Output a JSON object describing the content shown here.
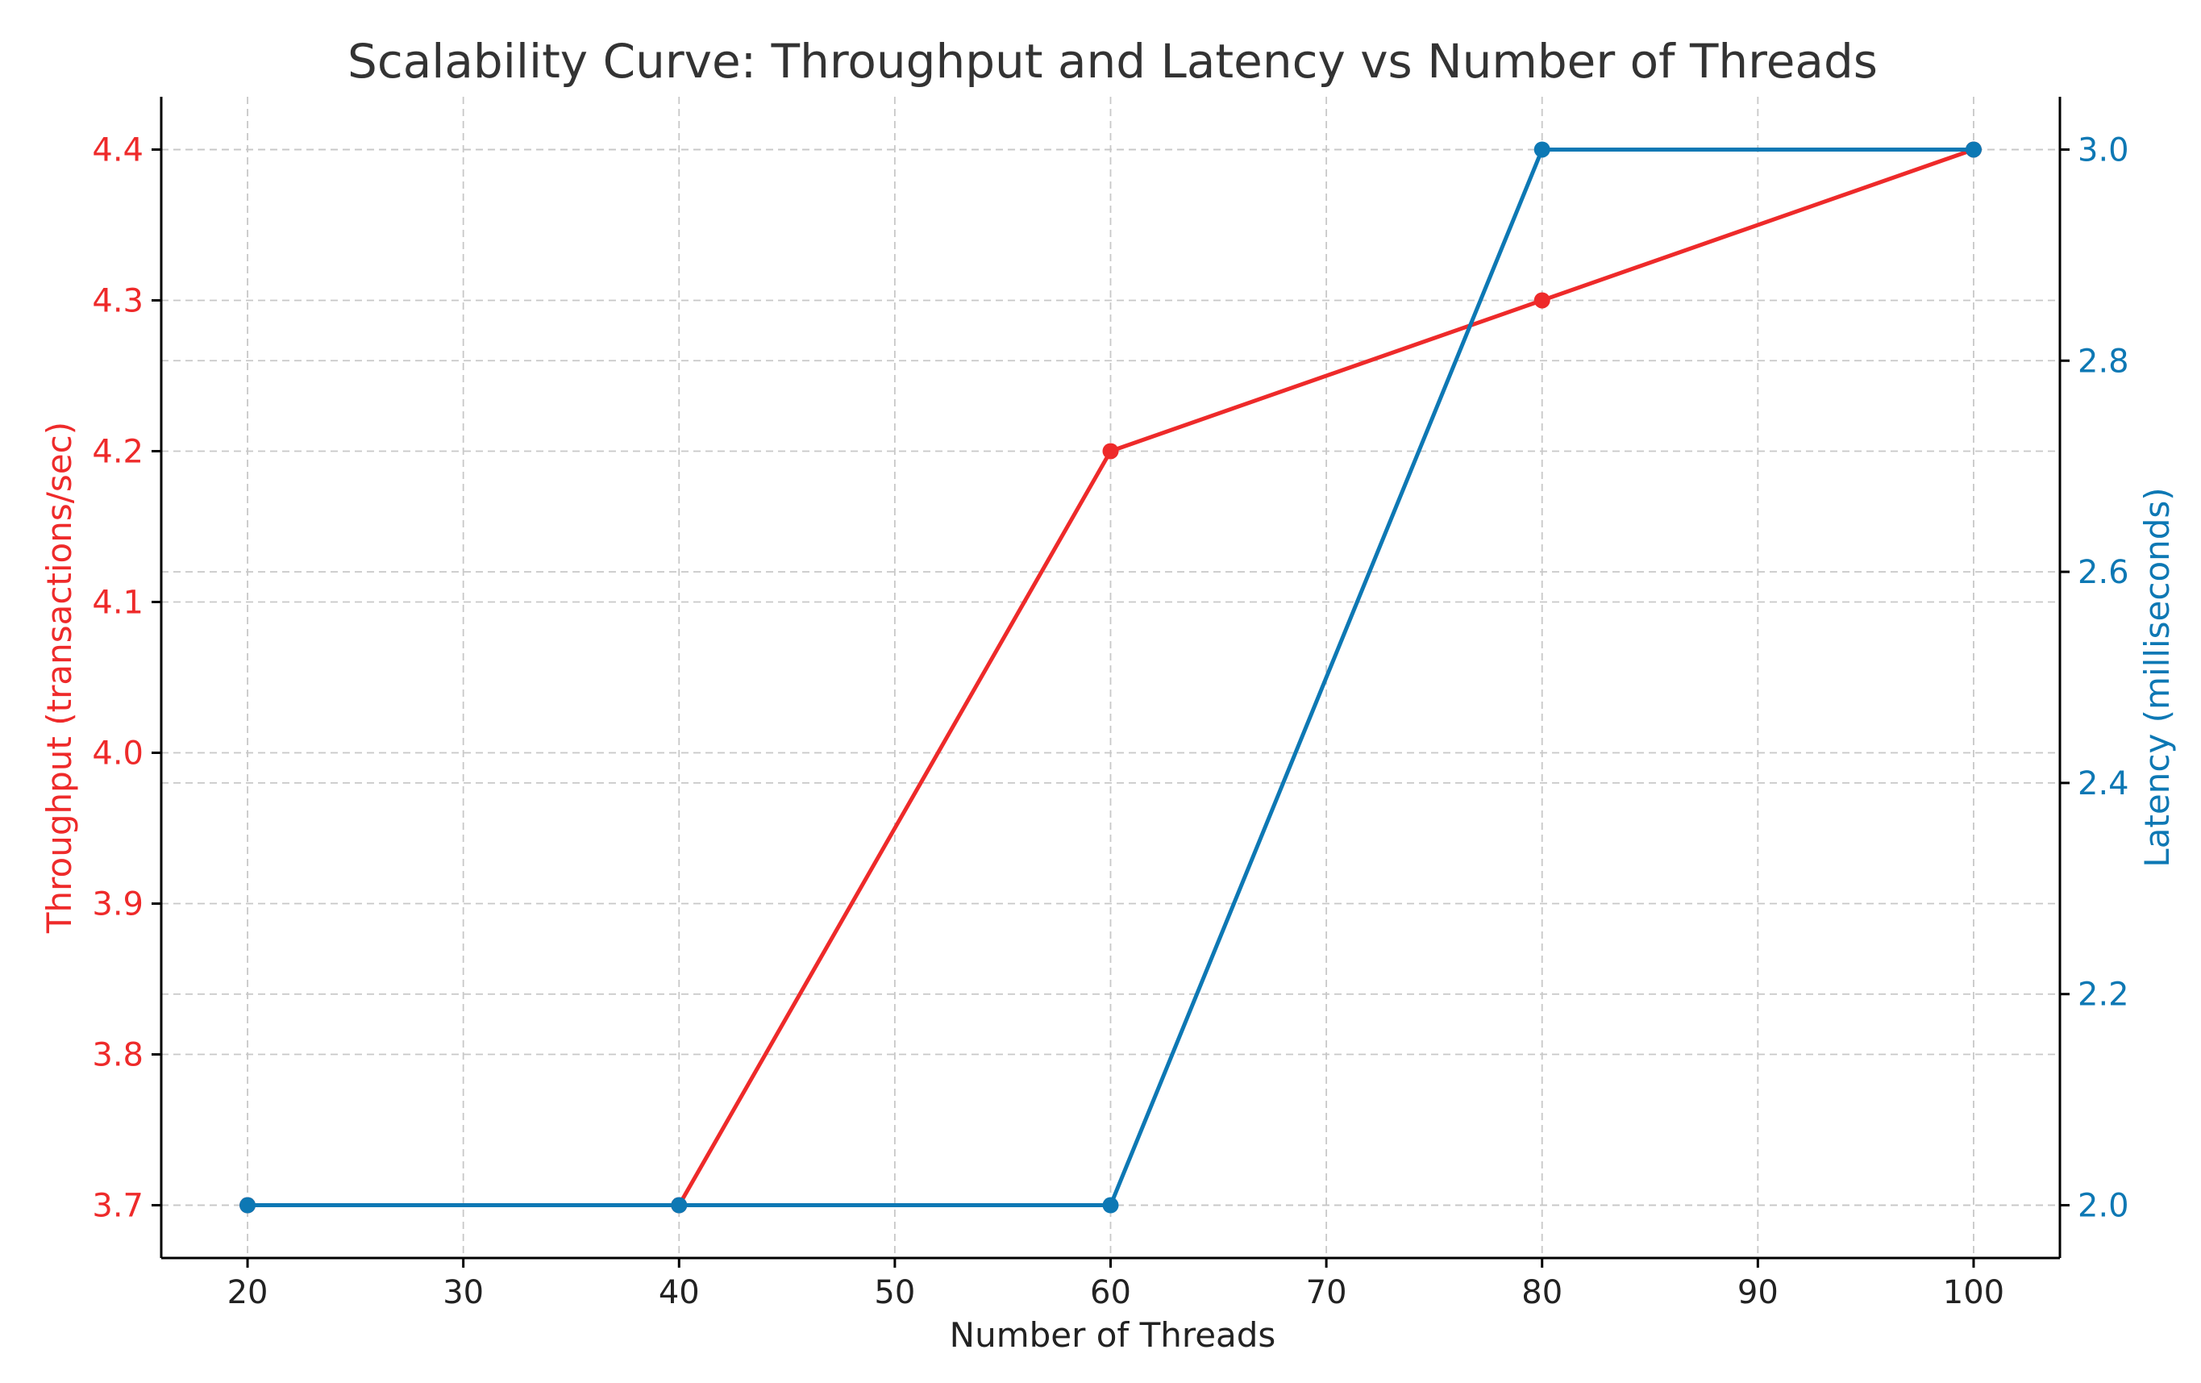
{
  "chart_data": {
    "type": "line",
    "title": "Scalability Curve: Throughput and Latency vs Number of Threads",
    "xlabel": "Number of Threads",
    "ylabel_left": "Throughput (transactions/sec)",
    "ylabel_right": "Latency (milliseconds)",
    "x": [
      20,
      40,
      60,
      80,
      100
    ],
    "x_ticks": [
      20,
      30,
      40,
      50,
      60,
      70,
      80,
      90,
      100
    ],
    "x_tick_labels": [
      "20",
      "30",
      "40",
      "50",
      "60",
      "70",
      "80",
      "90",
      "100"
    ],
    "xlim": [
      16,
      104
    ],
    "ylim_left": [
      3.665,
      4.435
    ],
    "ylim_right": [
      1.95,
      3.05
    ],
    "y_left_ticks": [
      3.7,
      3.8,
      3.9,
      4.0,
      4.1,
      4.2,
      4.3,
      4.4
    ],
    "y_left_tick_labels": [
      "3.7",
      "3.8",
      "3.9",
      "4.0",
      "4.1",
      "4.2",
      "4.3",
      "4.4"
    ],
    "y_right_ticks": [
      2.0,
      2.2,
      2.4,
      2.6,
      2.8,
      3.0
    ],
    "y_right_tick_labels": [
      "2.0",
      "2.2",
      "2.4",
      "2.6",
      "2.8",
      "3.0"
    ],
    "grid": true,
    "series": [
      {
        "axis": "left",
        "color": "#ee2a2a",
        "values": [
          3.7,
          3.7,
          4.2,
          4.3,
          4.4
        ]
      },
      {
        "axis": "right",
        "color": "#0d78b4",
        "values": [
          2.0,
          2.0,
          2.0,
          3.0,
          3.0
        ]
      }
    ]
  }
}
